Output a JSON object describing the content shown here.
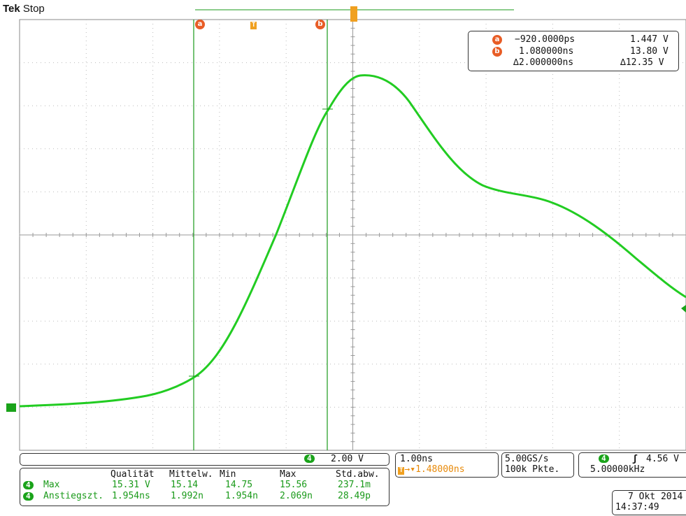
{
  "header": {
    "brand": "Tek",
    "status": "Stop"
  },
  "cursor_readout": {
    "a": {
      "badge": "a",
      "time": "−920.0000ps",
      "volt": "1.447 V"
    },
    "b": {
      "badge": "b",
      "time": "1.080000ns",
      "volt": "13.80 V"
    },
    "delta": {
      "time": "∆2.000000ns",
      "volt": "∆12.35 V"
    }
  },
  "cursor_markers": {
    "a": "a",
    "trigger": "T",
    "b": "b"
  },
  "channel_bar": {
    "channel": "4",
    "scale": "2.00 V"
  },
  "timebase": {
    "scale": "1.00ns",
    "trigger_position": "1.48000ns"
  },
  "acquisition": {
    "sample_rate": "5.00GS/s",
    "record_length": "100k Pkte."
  },
  "trigger": {
    "channel": "4",
    "slope_symbol": "ʃ",
    "level": "4.56 V",
    "frequency": "5.00000kHz"
  },
  "measurements": {
    "headers": [
      "Qualität",
      "Mittelw.",
      "Min",
      "Max",
      "Std.abw."
    ],
    "rows": [
      {
        "channel": "4",
        "name": "Max",
        "values": [
          "15.31 V",
          "15.14",
          "14.75",
          "15.56",
          "237.1m"
        ]
      },
      {
        "channel": "4",
        "name": "Anstiegszt.",
        "values": [
          "1.954ns",
          "1.992n",
          "1.954n",
          "2.069n",
          "28.49p"
        ]
      }
    ]
  },
  "datetime": {
    "date": "7 Okt 2014",
    "time": "14:37:49"
  },
  "colors": {
    "trace": "#22cc22",
    "grid": "#b0b0b0",
    "cursor": "#1a9a1a",
    "accent": "#e85d26",
    "trigger": "#f0a020"
  }
}
